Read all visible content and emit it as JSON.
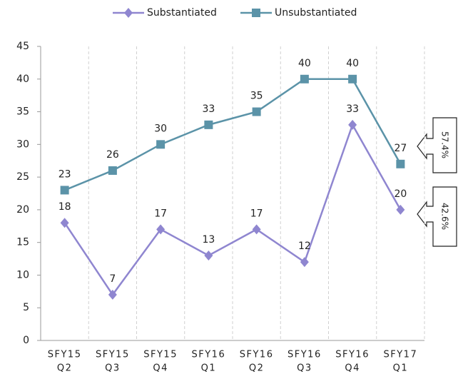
{
  "chart_data": {
    "type": "line",
    "categories": [
      [
        "SFY15",
        "Q2"
      ],
      [
        "SFY15",
        "Q3"
      ],
      [
        "SFY15",
        "Q4"
      ],
      [
        "SFY16",
        "Q1"
      ],
      [
        "SFY16",
        "Q2"
      ],
      [
        "SFY16",
        "Q3"
      ],
      [
        "SFY16",
        "Q4"
      ],
      [
        "SFY17",
        "Q1"
      ]
    ],
    "series": [
      {
        "name": "Substantiated",
        "color": "#8f86d0",
        "marker": "diamond",
        "values": [
          18,
          7,
          17,
          13,
          17,
          12,
          33,
          20
        ]
      },
      {
        "name": "Unsubstantiated",
        "color": "#5b93a8",
        "marker": "square",
        "values": [
          23,
          26,
          30,
          33,
          35,
          40,
          40,
          27
        ]
      }
    ],
    "ylim": [
      0,
      45
    ],
    "yticks": [
      0,
      5,
      10,
      15,
      20,
      25,
      30,
      35,
      40,
      45
    ],
    "legend": "top",
    "annotations": [
      "57.4%",
      "42.6%"
    ]
  }
}
